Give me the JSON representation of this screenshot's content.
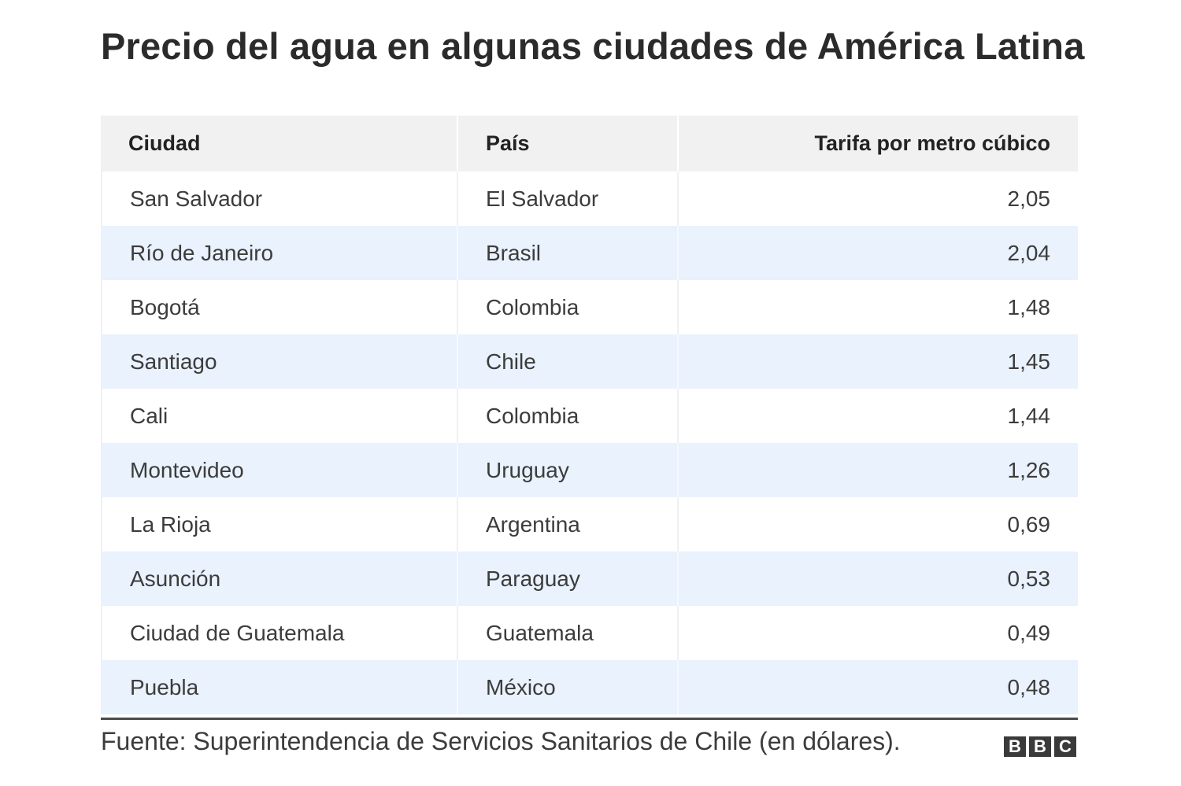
{
  "chart_data": {
    "type": "table",
    "title": "Precio del agua en algunas ciudades de América Latina",
    "columns": [
      "Ciudad",
      "País",
      "Tarifa por metro cúbico"
    ],
    "rows": [
      {
        "ciudad": "San Salvador",
        "pais": "El Salvador",
        "tarifa": "2,05"
      },
      {
        "ciudad": "Río de Janeiro",
        "pais": "Brasil",
        "tarifa": "2,04"
      },
      {
        "ciudad": "Bogotá",
        "pais": "Colombia",
        "tarifa": "1,48"
      },
      {
        "ciudad": "Santiago",
        "pais": "Chile",
        "tarifa": "1,45"
      },
      {
        "ciudad": "Cali",
        "pais": "Colombia",
        "tarifa": "1,44"
      },
      {
        "ciudad": "Montevideo",
        "pais": "Uruguay",
        "tarifa": "1,26"
      },
      {
        "ciudad": "La Rioja",
        "pais": "Argentina",
        "tarifa": "0,69"
      },
      {
        "ciudad": "Asunción",
        "pais": "Paraguay",
        "tarifa": "0,53"
      },
      {
        "ciudad": "Ciudad de Guatemala",
        "pais": "Guatemala",
        "tarifa": "0,49"
      },
      {
        "ciudad": "Puebla",
        "pais": "México",
        "tarifa": "0,48"
      }
    ],
    "source": "Fuente: Superintendencia de Servicios Sanitarios de Chile (en dólares)."
  },
  "branding": {
    "logo_letters": [
      "B",
      "B",
      "C"
    ],
    "logo_color": "#3a3a3a"
  },
  "colors": {
    "header_bg": "#f1f1f1",
    "stripe_bg": "#e9f2fd",
    "text": "#3c3c3c"
  }
}
